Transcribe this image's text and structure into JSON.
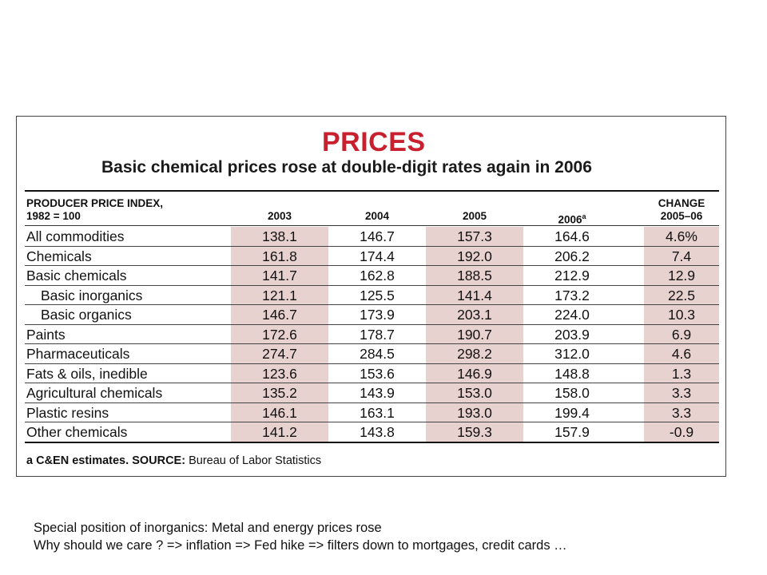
{
  "table_panel": {
    "title": "PRICES",
    "subtitle": "Basic chemical prices rose at double-digit rates again in 2006",
    "header": {
      "index_label_line1": "PRODUCER PRICE INDEX,",
      "index_label_line2": "1982 = 100",
      "years": [
        "2003",
        "2004",
        "2005",
        "2006"
      ],
      "year_2006_superscript": "a",
      "change_line1": "CHANGE",
      "change_line2": "2005–06"
    },
    "rows": [
      {
        "label": "All commodities",
        "indent": false,
        "values": [
          "138.1",
          "146.7",
          "157.3",
          "164.6",
          "4.6%"
        ]
      },
      {
        "label": "Chemicals",
        "indent": false,
        "values": [
          "161.8",
          "174.4",
          "192.0",
          "206.2",
          "7.4"
        ]
      },
      {
        "label": "Basic chemicals",
        "indent": false,
        "values": [
          "141.7",
          "162.8",
          "188.5",
          "212.9",
          "12.9"
        ]
      },
      {
        "label": "Basic inorganics",
        "indent": true,
        "values": [
          "121.1",
          "125.5",
          "141.4",
          "173.2",
          "22.5"
        ]
      },
      {
        "label": "Basic organics",
        "indent": true,
        "values": [
          "146.7",
          "173.9",
          "203.1",
          "224.0",
          "10.3"
        ]
      },
      {
        "label": "Paints",
        "indent": false,
        "values": [
          "172.6",
          "178.7",
          "190.7",
          "203.9",
          "6.9"
        ]
      },
      {
        "label": "Pharmaceuticals",
        "indent": false,
        "values": [
          "274.7",
          "284.5",
          "298.2",
          "312.0",
          "4.6"
        ]
      },
      {
        "label": "Fats & oils, inedible",
        "indent": false,
        "values": [
          "123.6",
          "153.6",
          "146.9",
          "148.8",
          "1.3"
        ]
      },
      {
        "label": "Agricultural chemicals",
        "indent": false,
        "values": [
          "135.2",
          "143.9",
          "153.0",
          "158.0",
          "3.3"
        ]
      },
      {
        "label": "Plastic resins",
        "indent": false,
        "values": [
          "146.1",
          "163.1",
          "193.0",
          "199.4",
          "3.3"
        ]
      },
      {
        "label": "Other chemicals",
        "indent": false,
        "values": [
          "141.2",
          "143.8",
          "159.3",
          "157.9",
          "-0.9"
        ]
      }
    ],
    "footnote": {
      "marker": "a",
      "estimate_text": "C&EN estimates.",
      "source_label": "SOURCE:",
      "source_text": "Bureau of Labor Statistics"
    },
    "colors": {
      "title_red": "#c8202f",
      "column_shade": "#e8d2cf"
    }
  },
  "caption": {
    "line1": "Special position of inorganics: Metal and energy prices rose",
    "line2": "Why should we care ? => inflation => Fed hike => filters down to mortgages, credit cards …"
  }
}
